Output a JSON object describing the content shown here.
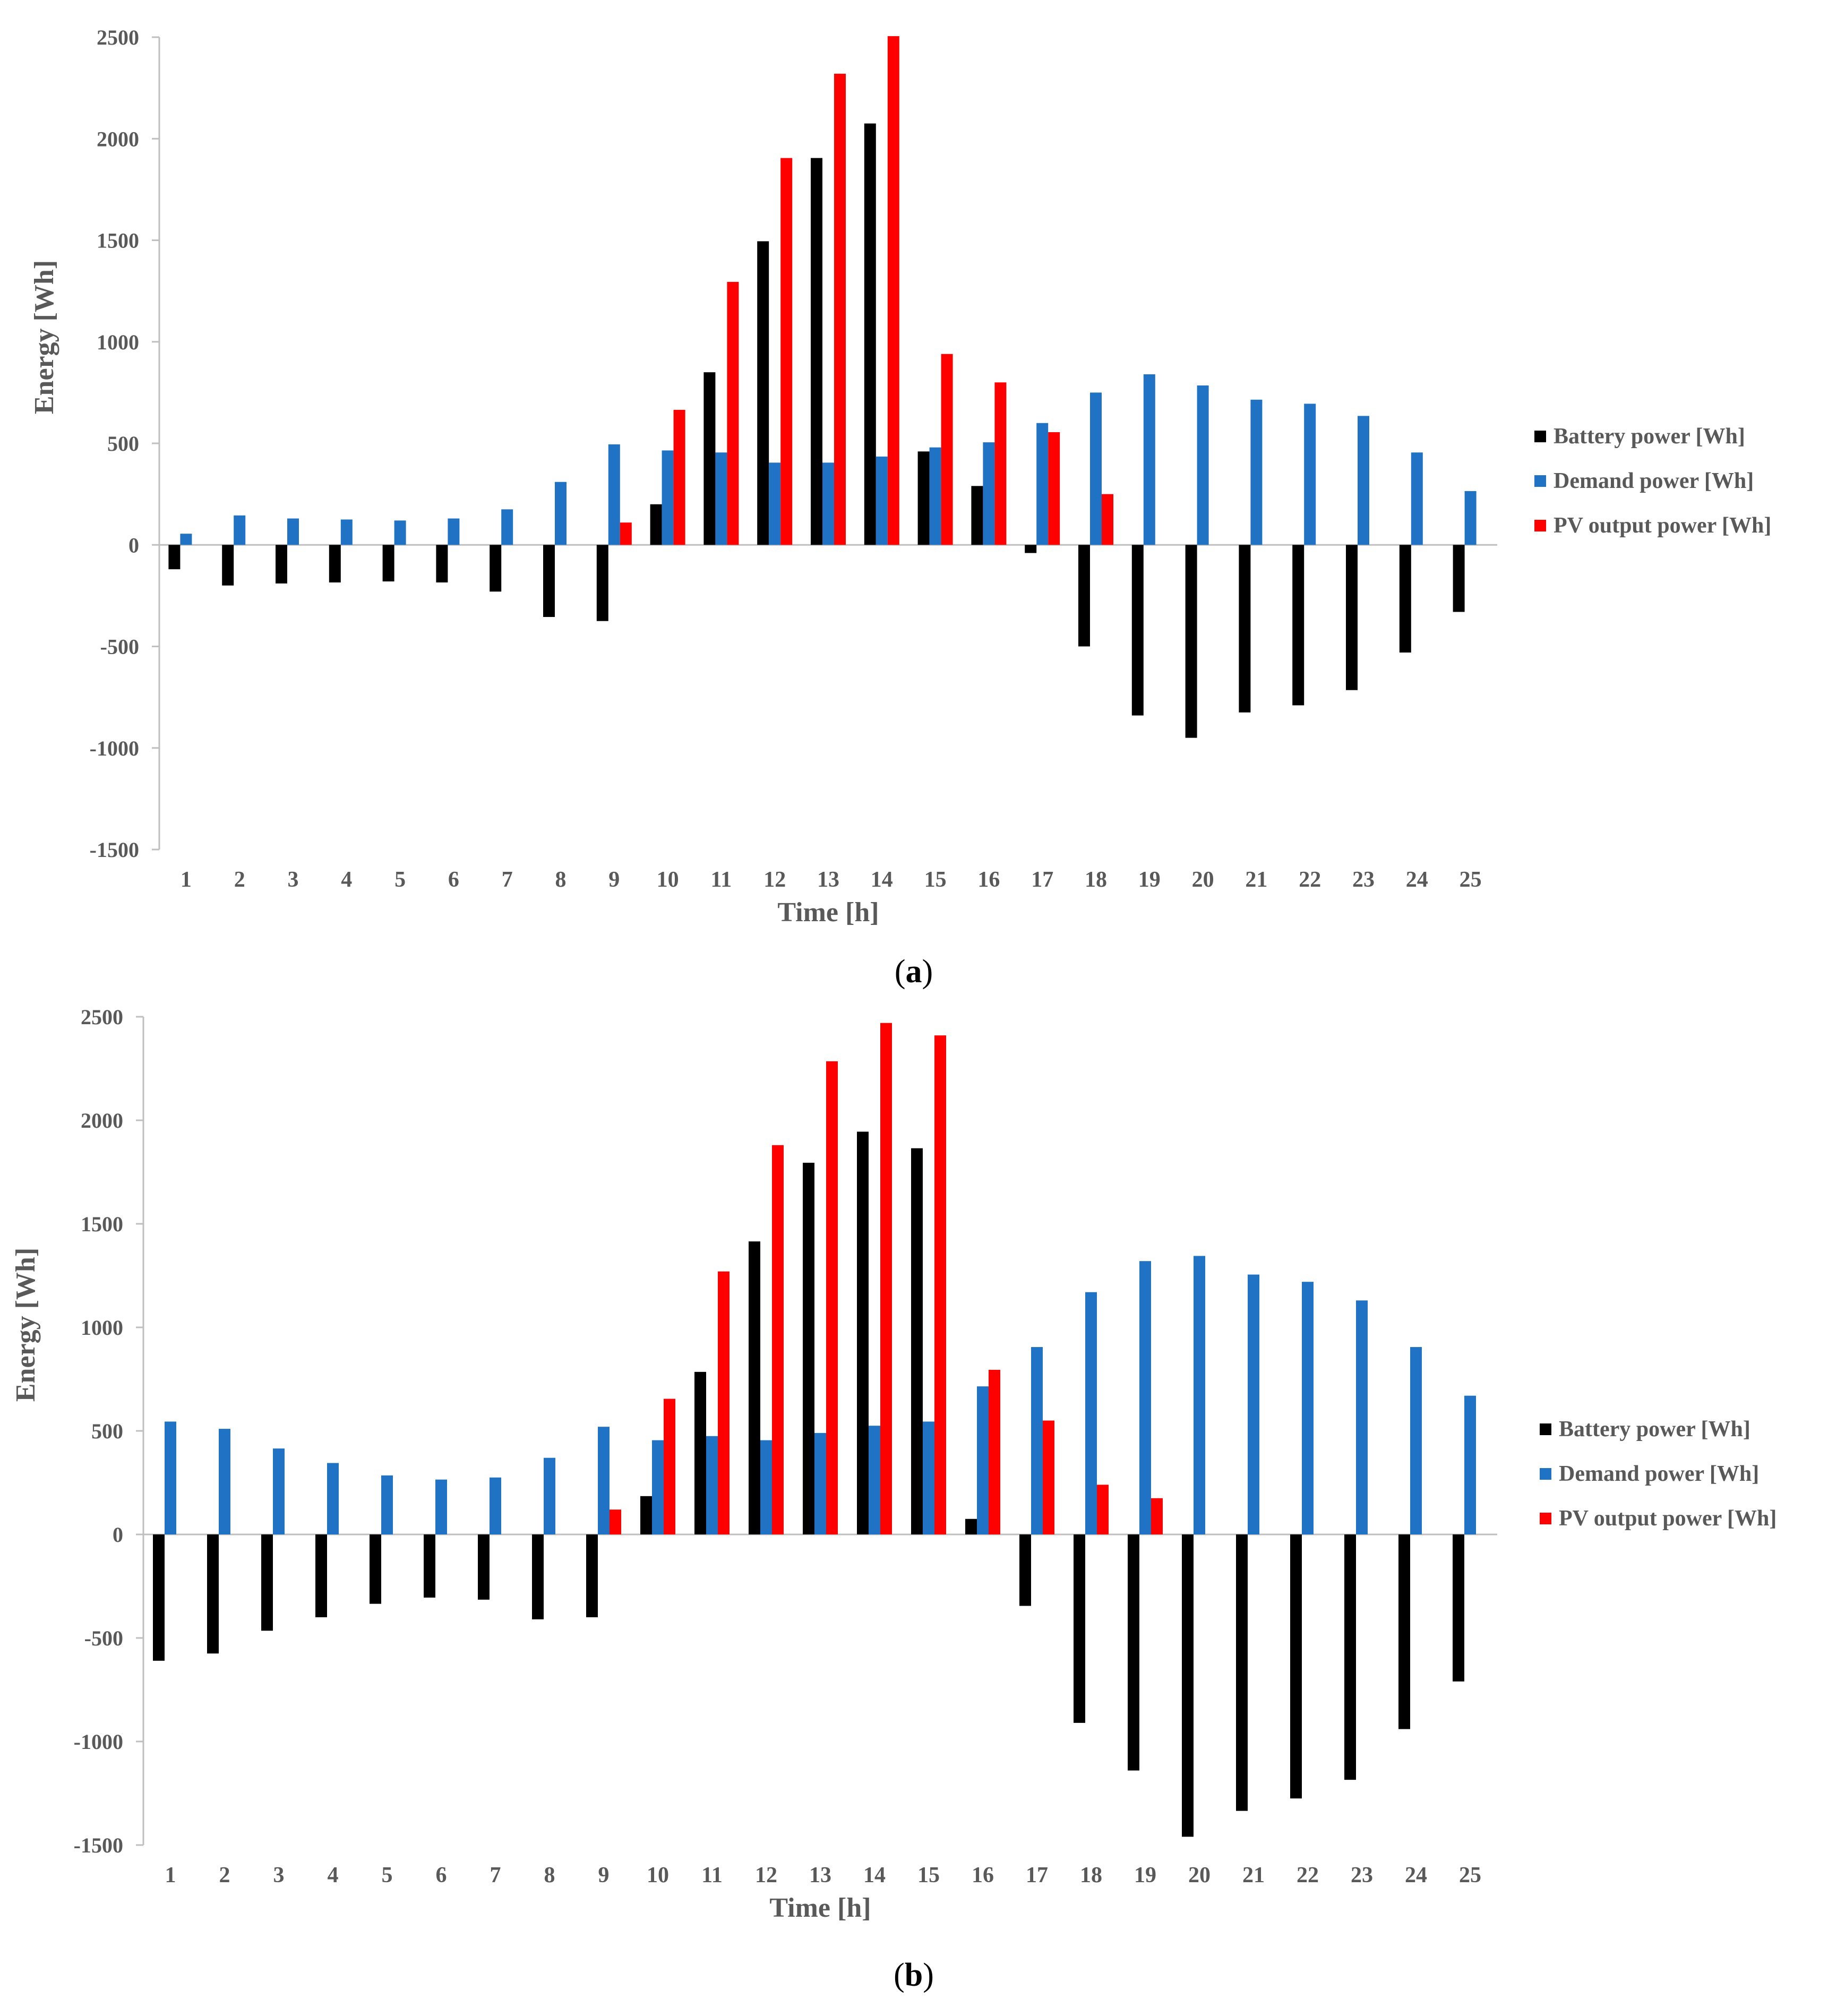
{
  "colors": {
    "battery": "#000000",
    "demand": "#1F72C4",
    "pv": "#FF0000",
    "axis": "#BFBFBF",
    "text": "#595959"
  },
  "chart_data": [
    {
      "type": "bar",
      "panel_label": "a",
      "xlabel": "Time [h]",
      "ylabel": "Energy [Wh]",
      "ylim": [
        -1500,
        2500
      ],
      "yticks": [
        -1500,
        -1000,
        -500,
        0,
        500,
        1000,
        1500,
        2000,
        2500
      ],
      "categories": [
        "1",
        "2",
        "3",
        "4",
        "5",
        "6",
        "7",
        "8",
        "9",
        "10",
        "11",
        "12",
        "13",
        "14",
        "15",
        "16",
        "17",
        "18",
        "19",
        "20",
        "21",
        "22",
        "23",
        "24",
        "25"
      ],
      "legend_position": "right",
      "series": [
        {
          "name": "Battery power [Wh]",
          "color_key": "battery",
          "values": [
            -120,
            -200,
            -190,
            -185,
            -180,
            -185,
            -230,
            -355,
            -375,
            200,
            850,
            1495,
            1905,
            2075,
            460,
            290,
            -40,
            -500,
            -840,
            -950,
            -825,
            -790,
            -715,
            -530,
            -330
          ]
        },
        {
          "name": "Demand power [Wh]",
          "color_key": "demand",
          "values": [
            55,
            145,
            130,
            125,
            120,
            130,
            175,
            310,
            495,
            465,
            455,
            405,
            405,
            435,
            480,
            505,
            600,
            750,
            840,
            785,
            715,
            695,
            635,
            455,
            265
          ]
        },
        {
          "name": "PV output power [Wh]",
          "color_key": "pv",
          "values": [
            0,
            0,
            0,
            0,
            0,
            0,
            0,
            0,
            110,
            665,
            1295,
            1905,
            2320,
            2505,
            940,
            800,
            555,
            250,
            0,
            0,
            0,
            0,
            0,
            0,
            0
          ]
        }
      ]
    },
    {
      "type": "bar",
      "panel_label": "b",
      "xlabel": "Time [h]",
      "ylabel": "Energy [Wh]",
      "ylim": [
        -1500,
        2500
      ],
      "yticks": [
        -1500,
        -1000,
        -500,
        0,
        500,
        1000,
        1500,
        2000,
        2500
      ],
      "categories": [
        "1",
        "2",
        "3",
        "4",
        "5",
        "6",
        "7",
        "8",
        "9",
        "10",
        "11",
        "12",
        "13",
        "14",
        "15",
        "16",
        "17",
        "18",
        "19",
        "20",
        "21",
        "22",
        "23",
        "24",
        "25"
      ],
      "legend_position": "right",
      "series": [
        {
          "name": "Battery power [Wh]",
          "color_key": "battery",
          "values": [
            -610,
            -575,
            -465,
            -400,
            -335,
            -305,
            -315,
            -410,
            -400,
            185,
            785,
            1415,
            1795,
            1945,
            1865,
            75,
            -345,
            -910,
            -1140,
            -1460,
            -1335,
            -1275,
            -1185,
            -940,
            -710
          ]
        },
        {
          "name": "Demand power [Wh]",
          "color_key": "demand",
          "values": [
            545,
            510,
            415,
            345,
            285,
            265,
            275,
            370,
            520,
            455,
            475,
            455,
            490,
            525,
            545,
            715,
            905,
            1170,
            1320,
            1345,
            1255,
            1220,
            1130,
            905,
            670
          ]
        },
        {
          "name": "PV output power [Wh]",
          "color_key": "pv",
          "values": [
            0,
            0,
            0,
            0,
            0,
            0,
            0,
            0,
            120,
            655,
            1270,
            1880,
            2285,
            2470,
            2410,
            795,
            550,
            240,
            175,
            0,
            0,
            0,
            0,
            0,
            0
          ]
        }
      ]
    }
  ]
}
